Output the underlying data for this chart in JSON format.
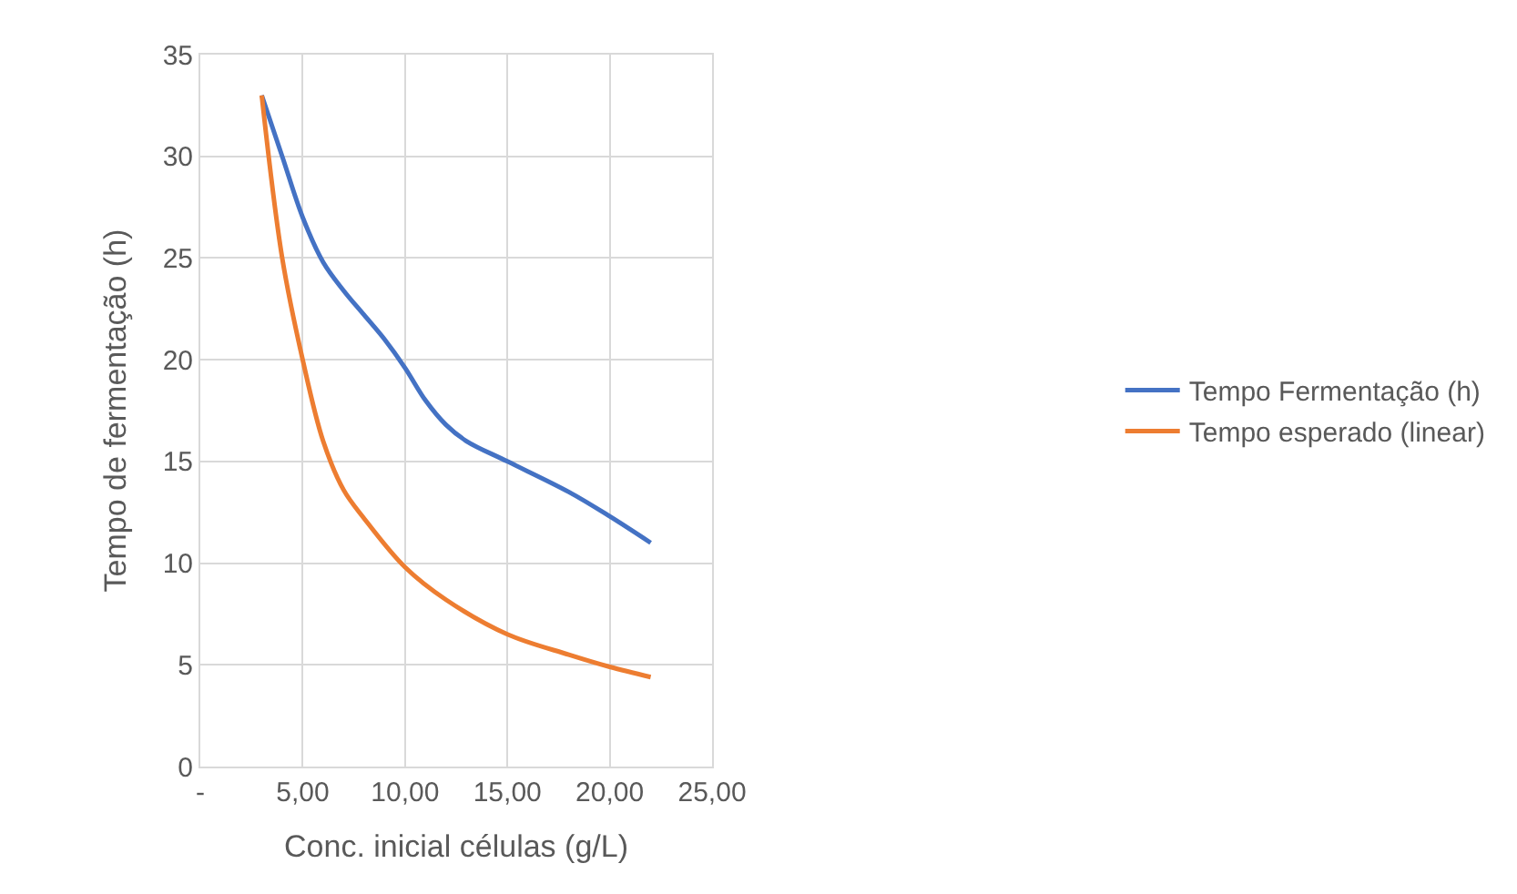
{
  "chart_data": {
    "type": "line",
    "xlabel": "Conc. inicial células (g/L)",
    "ylabel": "Tempo de fermentação (h)",
    "xlim": [
      0,
      25
    ],
    "xticks": [
      {
        "value": 0,
        "label": "-"
      },
      {
        "value": 5,
        "label": "5,00"
      },
      {
        "value": 10,
        "label": "10,00"
      },
      {
        "value": 15,
        "label": "15,00"
      },
      {
        "value": 20,
        "label": "20,00"
      },
      {
        "value": 25,
        "label": "25,00"
      }
    ],
    "ylim": [
      0,
      35
    ],
    "yticks": [
      0,
      5,
      10,
      15,
      20,
      25,
      30,
      35
    ],
    "grid": true,
    "legend": "right",
    "marker": "none",
    "line_style": "solid",
    "series": [
      {
        "name": "Tempo Fermentação (h)",
        "color": "#4472c4",
        "x": [
          3,
          4,
          5,
          6,
          7,
          8,
          9,
          10,
          11,
          12,
          13,
          15,
          18,
          20,
          22
        ],
        "values": [
          33,
          30,
          27,
          24.8,
          23.4,
          22.2,
          21,
          19.6,
          18,
          16.8,
          16,
          15,
          13.5,
          12.3,
          11
        ]
      },
      {
        "name": "Tempo esperado (linear)",
        "color": "#ed7d31",
        "x": [
          3,
          4,
          5,
          6,
          7,
          8,
          10,
          12,
          15,
          18,
          20,
          22
        ],
        "values": [
          33,
          25,
          20,
          16,
          13.6,
          12.2,
          9.8,
          8.2,
          6.5,
          5.5,
          4.9,
          4.4
        ]
      }
    ]
  }
}
